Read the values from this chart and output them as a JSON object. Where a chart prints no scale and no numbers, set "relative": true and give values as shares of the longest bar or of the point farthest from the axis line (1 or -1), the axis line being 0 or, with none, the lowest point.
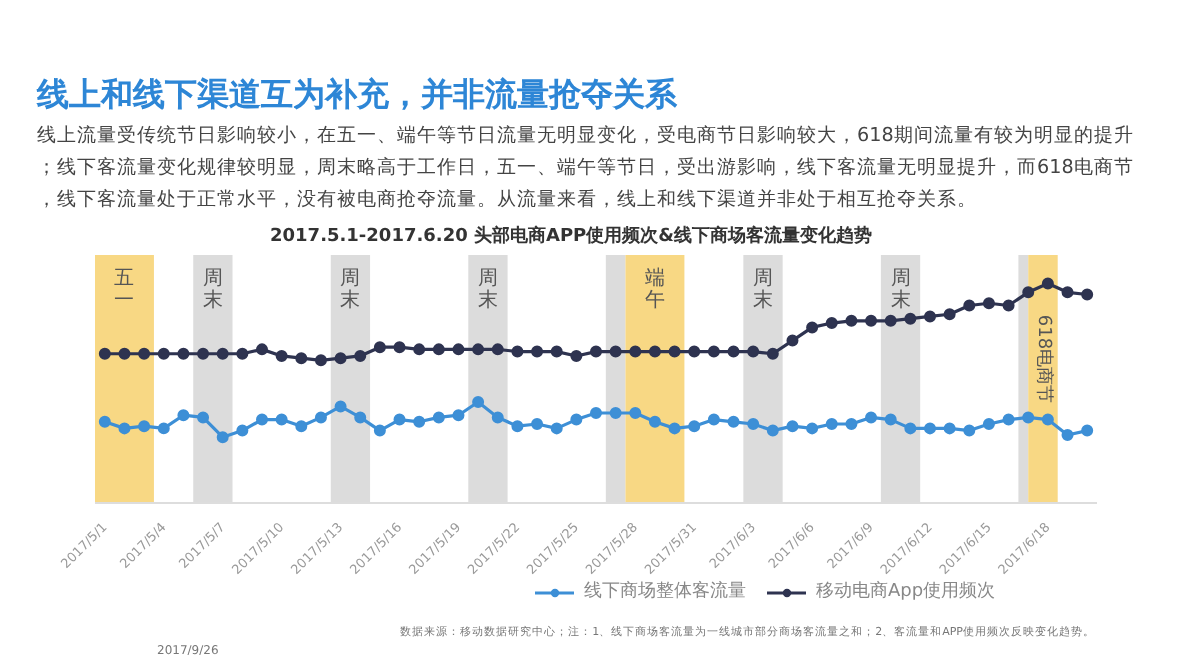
{
  "chart_data": {
    "type": "line",
    "title": "线上和线下渠道互为补充，并非流量抢夺关系",
    "subtitle": "线上流量受传统节日影响较小，在五一、端午等节日流量无明显变化，受电商节日影响较大，618期间流量有较为明显的提升；线下客流量变化规律较明显，周末略高于工作日，五一、端午等节日，受出游影响，线下客流量无明显提升，而618电商节，线下客流量处于正常水平，没有被电商抢夺流量。从流量来看，线上和线下渠道并非处于相互抢夺关系。",
    "annotations": [
      "2017.5.1-2017.6.20 头部电商APP使用频次&线下商场客流量变化趋势",
      "数据来源：移动数据研究中心；注：1、线下商场客流量为一线城市部分商场客流量之和；2、客流量和APP使用频次反映变化趋势。",
      "2017/9/26"
    ],
    "relative": true,
    "marker": "circle",
    "line_style": "solid",
    "grid": false,
    "legend": "bottom",
    "tick_labels": "x",
    "x": [
      "2017-05-01",
      "2017-05-02",
      "2017-05-03",
      "2017-05-04",
      "2017-05-05",
      "2017-05-06",
      "2017-05-07",
      "2017-05-08",
      "2017-05-09",
      "2017-05-10",
      "2017-05-11",
      "2017-05-12",
      "2017-05-13",
      "2017-05-14",
      "2017-05-15",
      "2017-05-16",
      "2017-05-17",
      "2017-05-18",
      "2017-05-19",
      "2017-05-20",
      "2017-05-21",
      "2017-05-22",
      "2017-05-23",
      "2017-05-24",
      "2017-05-25",
      "2017-05-26",
      "2017-05-27",
      "2017-05-28",
      "2017-05-29",
      "2017-05-30",
      "2017-05-31",
      "2017-06-01",
      "2017-06-02",
      "2017-06-03",
      "2017-06-04",
      "2017-06-05",
      "2017-06-06",
      "2017-06-07",
      "2017-06-08",
      "2017-06-09",
      "2017-06-10",
      "2017-06-11",
      "2017-06-12",
      "2017-06-13",
      "2017-06-14",
      "2017-06-15",
      "2017-06-16",
      "2017-06-17",
      "2017-06-18",
      "2017-06-19",
      "2017-06-20"
    ],
    "xlim": [
      "2017-04-30T12:00",
      "2017-06-20T12:00"
    ],
    "xticks": [
      {
        "value": "2017-05-01",
        "label": "2017/5/1"
      },
      {
        "value": "2017-05-04",
        "label": "2017/5/4"
      },
      {
        "value": "2017-05-07",
        "label": "2017/5/7"
      },
      {
        "value": "2017-05-10",
        "label": "2017/5/10"
      },
      {
        "value": "2017-05-13",
        "label": "2017/5/13"
      },
      {
        "value": "2017-05-16",
        "label": "2017/5/16"
      },
      {
        "value": "2017-05-19",
        "label": "2017/5/19"
      },
      {
        "value": "2017-05-22",
        "label": "2017/5/22"
      },
      {
        "value": "2017-05-25",
        "label": "2017/5/25"
      },
      {
        "value": "2017-05-28",
        "label": "2017/5/28"
      },
      {
        "value": "2017-05-31",
        "label": "2017/5/31"
      },
      {
        "value": "2017-06-03",
        "label": "2017/6/3"
      },
      {
        "value": "2017-06-06",
        "label": "2017/6/6"
      },
      {
        "value": "2017-06-09",
        "label": "2017/6/9"
      },
      {
        "value": "2017-06-12",
        "label": "2017/6/12"
      },
      {
        "value": "2017-06-15",
        "label": "2017/6/15"
      },
      {
        "value": "2017-06-18",
        "label": "2017/6/18"
      }
    ],
    "series": [
      {
        "name": "线下商场整体客流量",
        "color": "#3d8fd6",
        "values": [
          0.37,
          0.34,
          0.35,
          0.34,
          0.4,
          0.39,
          0.3,
          0.33,
          0.38,
          0.38,
          0.35,
          0.39,
          0.44,
          0.39,
          0.33,
          0.38,
          0.37,
          0.39,
          0.4,
          0.46,
          0.39,
          0.35,
          0.36,
          0.34,
          0.38,
          0.41,
          0.41,
          0.41,
          0.37,
          0.34,
          0.35,
          0.38,
          0.37,
          0.36,
          0.33,
          0.35,
          0.34,
          0.36,
          0.36,
          0.39,
          0.38,
          0.34,
          0.34,
          0.34,
          0.33,
          0.36,
          0.38,
          0.39,
          0.38,
          0.31,
          0.33
        ]
      },
      {
        "name": "移动电商App使用频次",
        "color": "#2e3350",
        "values": [
          0.68,
          0.68,
          0.68,
          0.68,
          0.68,
          0.68,
          0.68,
          0.68,
          0.7,
          0.67,
          0.66,
          0.65,
          0.66,
          0.67,
          0.71,
          0.71,
          0.7,
          0.7,
          0.7,
          0.7,
          0.7,
          0.69,
          0.69,
          0.69,
          0.67,
          0.69,
          0.69,
          0.69,
          0.69,
          0.69,
          0.69,
          0.69,
          0.69,
          0.69,
          0.68,
          0.74,
          0.8,
          0.82,
          0.83,
          0.83,
          0.83,
          0.84,
          0.85,
          0.86,
          0.9,
          0.91,
          0.9,
          0.96,
          1.0,
          0.96,
          0.95
        ]
      }
    ],
    "bands": [
      {
        "axis": "x",
        "from": "2017-04-30T12:00",
        "to": "2017-05-03T12:00",
        "label": "五一",
        "color": "#f8d884"
      },
      {
        "axis": "x",
        "from": "2017-05-05T12:00",
        "to": "2017-05-07T12:00",
        "label": "周末",
        "color": "#dcdcdc"
      },
      {
        "axis": "x",
        "from": "2017-05-12T12:00",
        "to": "2017-05-14T12:00",
        "label": "周末",
        "color": "#dcdcdc"
      },
      {
        "axis": "x",
        "from": "2017-05-19T12:00",
        "to": "2017-05-21T12:00",
        "label": "周末",
        "color": "#dcdcdc"
      },
      {
        "axis": "x",
        "from": "2017-05-26T12:00",
        "to": "2017-05-27T12:00",
        "color": "#dcdcdc"
      },
      {
        "axis": "x",
        "from": "2017-05-27T12:00",
        "to": "2017-05-30T12:00",
        "label": "端午",
        "color": "#f8d884"
      },
      {
        "axis": "x",
        "from": "2017-06-02T12:00",
        "to": "2017-06-04T12:00",
        "label": "周末",
        "color": "#dcdcdc"
      },
      {
        "axis": "x",
        "from": "2017-06-09T12:00",
        "to": "2017-06-11T12:00",
        "label": "周末",
        "color": "#dcdcdc"
      },
      {
        "axis": "x",
        "from": "2017-06-16T12:00",
        "to": "2017-06-17T00:00",
        "color": "#dcdcdc"
      },
      {
        "axis": "x",
        "from": "2017-06-17T00:00",
        "to": "2017-06-18T12:00",
        "label": "618电商节",
        "color": "#f8d884"
      }
    ]
  }
}
